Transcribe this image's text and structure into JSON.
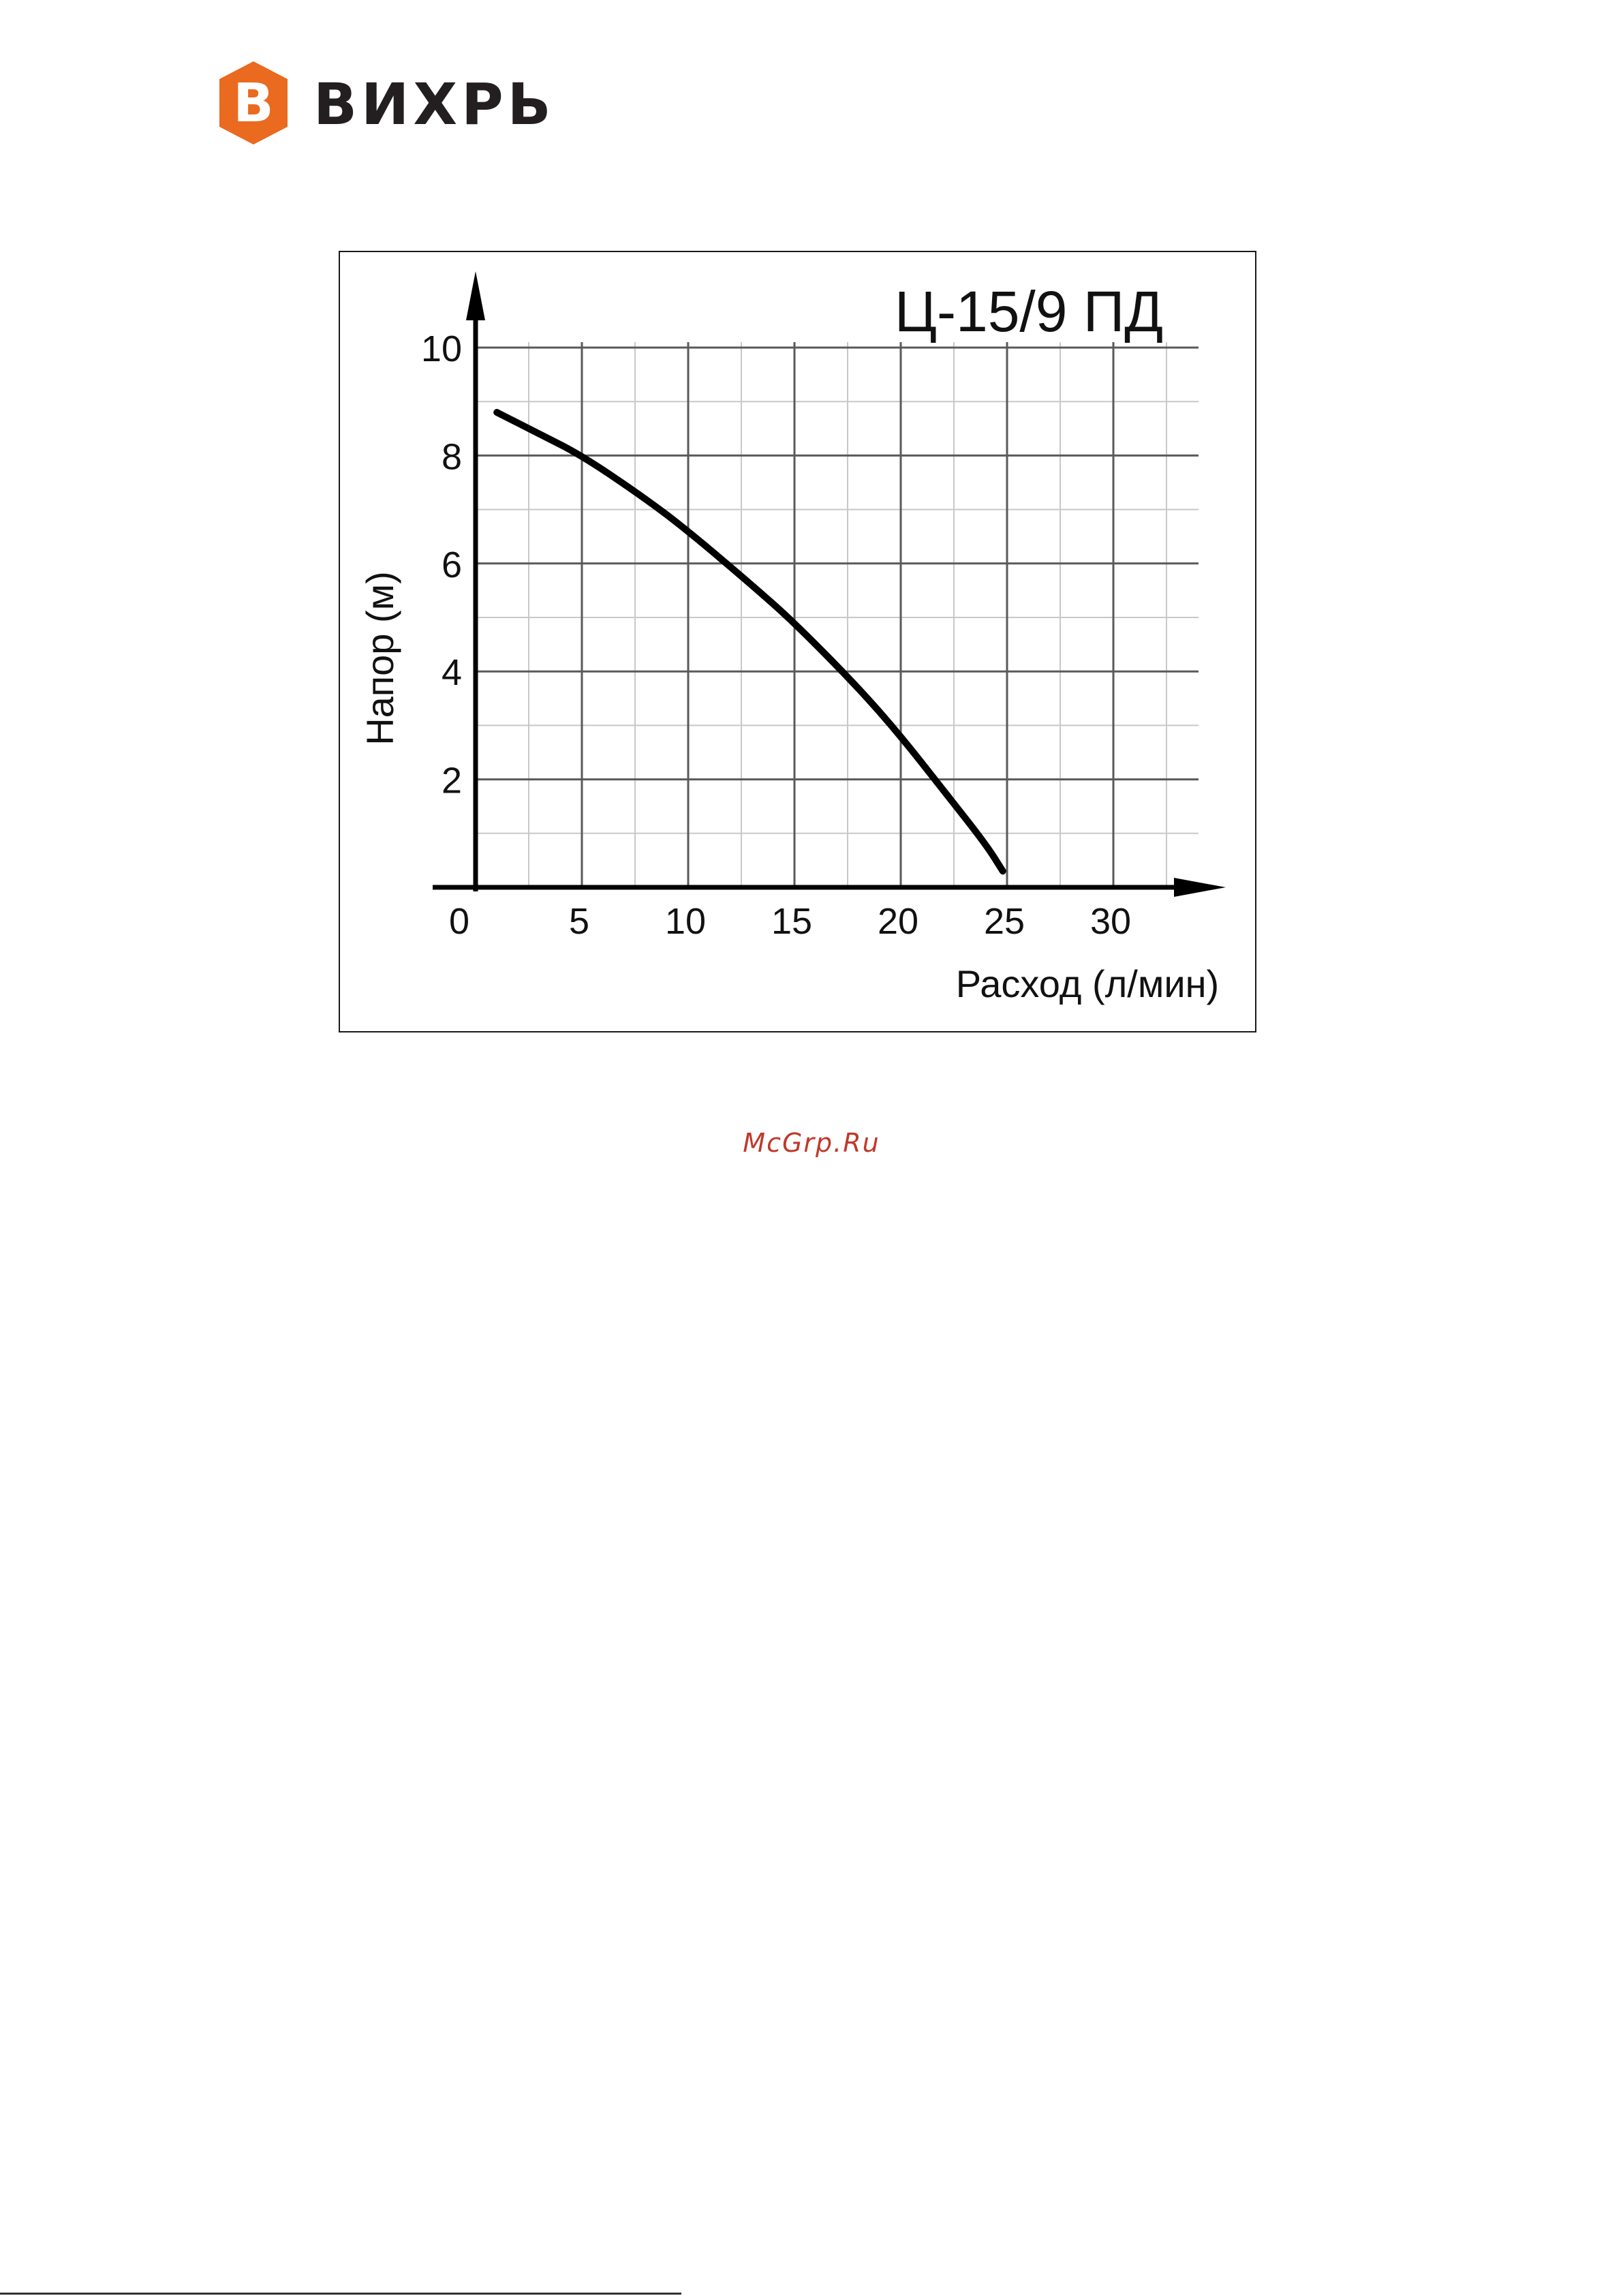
{
  "brand": {
    "name": "ВИХРЬ",
    "logo_letter": "В",
    "logo_color": "#ea6a1f",
    "text_color": "#231f20"
  },
  "chart_data": {
    "type": "line",
    "title": "Ц-15/9 ПД",
    "xlabel": "Расход (л/мин)",
    "ylabel": "Напор (м)",
    "xlim": [
      0,
      35
    ],
    "ylim": [
      0,
      10
    ],
    "x_ticks": [
      0,
      5,
      10,
      15,
      20,
      25,
      30
    ],
    "y_ticks": [
      2,
      4,
      6,
      8,
      10
    ],
    "grid": true,
    "legend": false,
    "series": [
      {
        "x": [
          1,
          3,
          5,
          8,
          10,
          13,
          15,
          18,
          20,
          22,
          24,
          24.8
        ],
        "y": [
          8.8,
          8.4,
          8.0,
          7.2,
          6.6,
          5.6,
          4.9,
          3.7,
          2.8,
          1.8,
          0.8,
          0.3
        ]
      }
    ]
  },
  "watermark": "McGrp.Ru"
}
